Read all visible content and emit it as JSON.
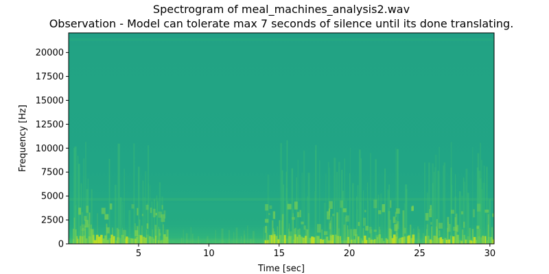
{
  "chart_data": {
    "type": "heatmap",
    "title": "Spectrogram of meal_machines_analysis2.wav",
    "subtitle": "Observation - Model can tolerate max 7 seconds of silence until its done translating.",
    "xlabel": "Time [sec]",
    "ylabel": "Frequency [Hz]",
    "xlim": [
      0.02,
      30.3
    ],
    "ylim": [
      0,
      22050
    ],
    "xticks": [
      5,
      10,
      15,
      20,
      25,
      30
    ],
    "yticks": [
      0,
      2500,
      5000,
      7500,
      10000,
      12500,
      15000,
      17500,
      20000
    ],
    "grid": false,
    "colormap": "viridis",
    "colors": {
      "background_band": "#21a585",
      "mid": "#3bbb74",
      "high": "#7fd34e",
      "peak": "#c8e020"
    },
    "loud_segments_sec": [
      [
        0.2,
        7.0
      ],
      [
        13.9,
        24.5
      ],
      [
        25.3,
        30.3
      ]
    ],
    "quiet_segment_sec": [
      7.0,
      13.9
    ]
  }
}
